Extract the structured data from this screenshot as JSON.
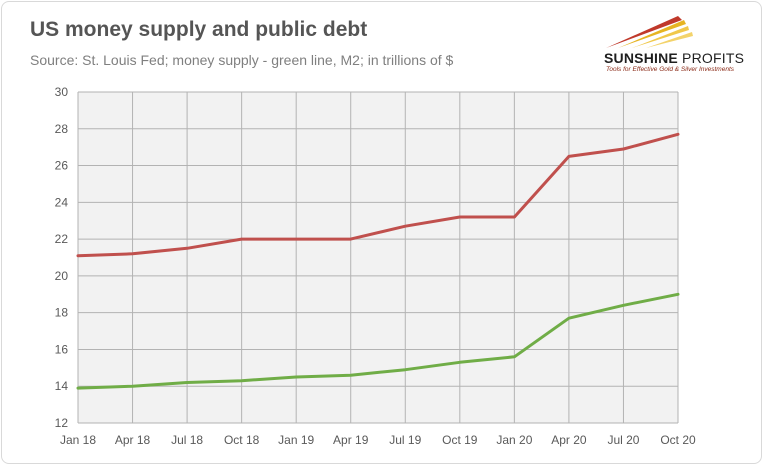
{
  "header": {
    "title": "US money supply and public debt",
    "subtitle": "Source: St. Louis Fed; money supply - green line, M2; in trillions of $"
  },
  "logo": {
    "name_bold": "SUNSHINE",
    "name_light": " PROFITS",
    "tagline": "Tools for Effective Gold & Silver Investments",
    "icon": "sunshine-profits-logo-icon"
  },
  "colors": {
    "public_debt": "#c0504d",
    "money_supply": "#70ad47",
    "grid": "#b3b3b3",
    "plot_bg": "#f2f2f2"
  },
  "chart_data": {
    "type": "line",
    "categories": [
      "Jan 18",
      "Apr 18",
      "Jul 18",
      "Oct 18",
      "Jan 19",
      "Apr 19",
      "Jul 19",
      "Oct 19",
      "Jan 20",
      "Apr 20",
      "Jul 20",
      "Oct 20"
    ],
    "ylim": [
      12,
      30
    ],
    "y_ticks": [
      "12",
      "14",
      "16",
      "18",
      "20",
      "22",
      "24",
      "26",
      "28",
      "30"
    ],
    "grid": true,
    "legend": "none",
    "series": [
      {
        "key": "public_debt",
        "values": [
          21.1,
          21.2,
          21.5,
          22.0,
          22.0,
          22.0,
          22.7,
          23.2,
          23.2,
          26.5,
          26.9,
          27.7
        ]
      },
      {
        "key": "money_supply",
        "values": [
          13.9,
          14.0,
          14.2,
          14.3,
          14.5,
          14.6,
          14.9,
          15.3,
          15.6,
          17.7,
          18.4,
          19.0
        ]
      }
    ]
  }
}
